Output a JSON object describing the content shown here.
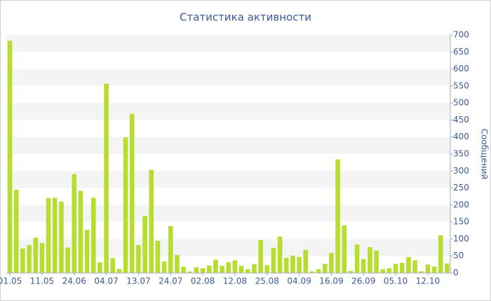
{
  "chart_data": {
    "type": "bar",
    "title": "Статистика активности",
    "y_label": "Сообщений",
    "categories": [
      "01.05",
      null,
      null,
      null,
      null,
      "11.05",
      null,
      null,
      null,
      null,
      "24.06",
      null,
      null,
      null,
      null,
      "04.07",
      null,
      null,
      null,
      null,
      "13.07",
      null,
      null,
      null,
      null,
      "24.07",
      null,
      null,
      null,
      null,
      "02.08",
      null,
      null,
      null,
      null,
      "12.08",
      null,
      null,
      null,
      null,
      "25.08",
      null,
      null,
      null,
      null,
      "04.09",
      null,
      null,
      null,
      null,
      "16.09",
      null,
      null,
      null,
      null,
      "26.09",
      null,
      null,
      null,
      null,
      "05.10",
      null,
      null,
      null,
      null,
      "12.10",
      null,
      null,
      null
    ],
    "values": [
      683,
      245,
      72,
      82,
      104,
      88,
      220,
      221,
      210,
      75,
      291,
      242,
      127,
      221,
      31,
      557,
      44,
      12,
      399,
      468,
      82,
      168,
      303,
      95,
      34,
      138,
      53,
      18,
      4,
      17,
      14,
      22,
      39,
      21,
      32,
      37,
      21,
      11,
      26,
      97,
      23,
      74,
      107,
      45,
      51,
      47,
      68,
      5,
      11,
      27,
      59,
      334,
      140,
      6,
      84,
      41,
      76,
      66,
      11,
      14,
      27,
      30,
      47,
      37,
      5,
      25,
      19,
      111,
      28
    ],
    "color": "#b6dd2f",
    "ylim": [
      0,
      700
    ],
    "yticks": [
      0,
      50,
      100,
      150,
      200,
      250,
      300,
      350,
      400,
      450,
      500,
      550,
      600,
      650,
      700
    ],
    "y_axis_side": "right",
    "grid": true
  }
}
